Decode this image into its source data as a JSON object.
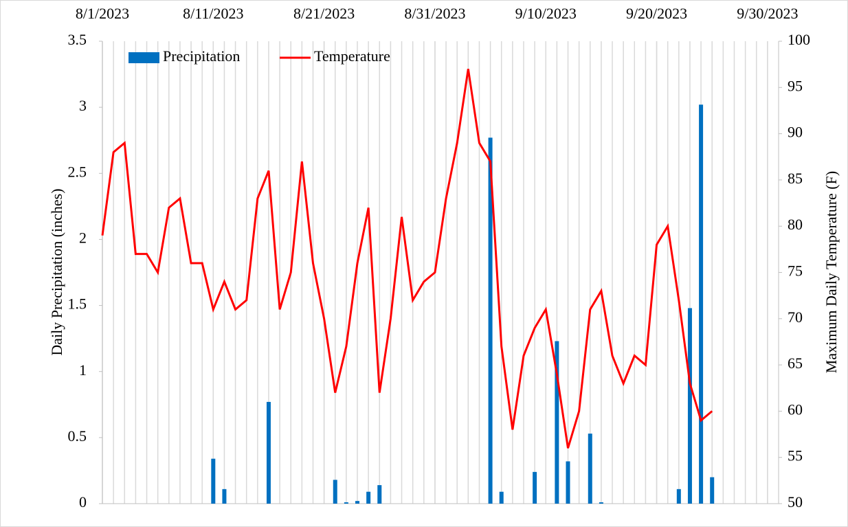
{
  "chart_data": {
    "type": "bar-line",
    "x": [
      "8/1/2023",
      "8/2/2023",
      "8/3/2023",
      "8/4/2023",
      "8/5/2023",
      "8/6/2023",
      "8/7/2023",
      "8/8/2023",
      "8/9/2023",
      "8/10/2023",
      "8/11/2023",
      "8/12/2023",
      "8/13/2023",
      "8/14/2023",
      "8/15/2023",
      "8/16/2023",
      "8/17/2023",
      "8/18/2023",
      "8/19/2023",
      "8/20/2023",
      "8/21/2023",
      "8/22/2023",
      "8/23/2023",
      "8/24/2023",
      "8/25/2023",
      "8/26/2023",
      "8/27/2023",
      "8/28/2023",
      "8/29/2023",
      "8/30/2023",
      "8/31/2023",
      "9/1/2023",
      "9/2/2023",
      "9/3/2023",
      "9/4/2023",
      "9/5/2023",
      "9/6/2023",
      "9/7/2023",
      "9/8/2023",
      "9/9/2023",
      "9/10/2023",
      "9/11/2023",
      "9/12/2023",
      "9/13/2023",
      "9/14/2023",
      "9/15/2023",
      "9/16/2023",
      "9/17/2023",
      "9/18/2023",
      "9/19/2023",
      "9/20/2023",
      "9/21/2023",
      "9/22/2023",
      "9/23/2023",
      "9/24/2023",
      "9/25/2023"
    ],
    "series": [
      {
        "name": "Precipitation",
        "type": "bar",
        "color": "#0070c0",
        "values": [
          0,
          0,
          0,
          0,
          0,
          0,
          0,
          0,
          0,
          0,
          0.34,
          0.11,
          0,
          0,
          0,
          0.77,
          0,
          0,
          0,
          0,
          0,
          0.18,
          0.01,
          0.02,
          0.09,
          0.14,
          0,
          0,
          0,
          0,
          0,
          0,
          0,
          0,
          0,
          2.77,
          0.09,
          0,
          0,
          0.24,
          0,
          1.23,
          0.32,
          0,
          0.53,
          0.01,
          0,
          0,
          0,
          0,
          0,
          0,
          0.11,
          1.48,
          3.02,
          0.2
        ]
      },
      {
        "name": "Temperature",
        "type": "line",
        "color": "#ff0000",
        "axis": "y2",
        "values": [
          79,
          88,
          89,
          77,
          77,
          75,
          82,
          83,
          76,
          76,
          71,
          74,
          71,
          72,
          83,
          86,
          71,
          75,
          87,
          76,
          70,
          62,
          67,
          76,
          82,
          62,
          70,
          81,
          72,
          74,
          75,
          83,
          89,
          97,
          89,
          87,
          67,
          58,
          66,
          69,
          71,
          64,
          56,
          60,
          71,
          73,
          66,
          63,
          66,
          65,
          78,
          80,
          72,
          63,
          59,
          60
        ]
      }
    ],
    "xlim": [
      "8/1/2023",
      "10/1/2023"
    ],
    "xticks": [
      "8/1/2023",
      "8/11/2023",
      "8/21/2023",
      "8/31/2023",
      "9/10/2023",
      "9/20/2023",
      "9/30/2023"
    ],
    "ylabel": "Daily Precipitation (inches)",
    "ylim": [
      0,
      3.5
    ],
    "yticks": [
      0,
      0.5,
      1,
      1.5,
      2,
      2.5,
      3,
      3.5
    ],
    "y2label": "Maximum Daily Temperature (F)",
    "y2lim": [
      50,
      100
    ],
    "y2ticks": [
      50,
      55,
      60,
      65,
      70,
      75,
      80,
      85,
      90,
      95,
      100
    ],
    "grid": "x-daily",
    "legend": "top-left"
  }
}
